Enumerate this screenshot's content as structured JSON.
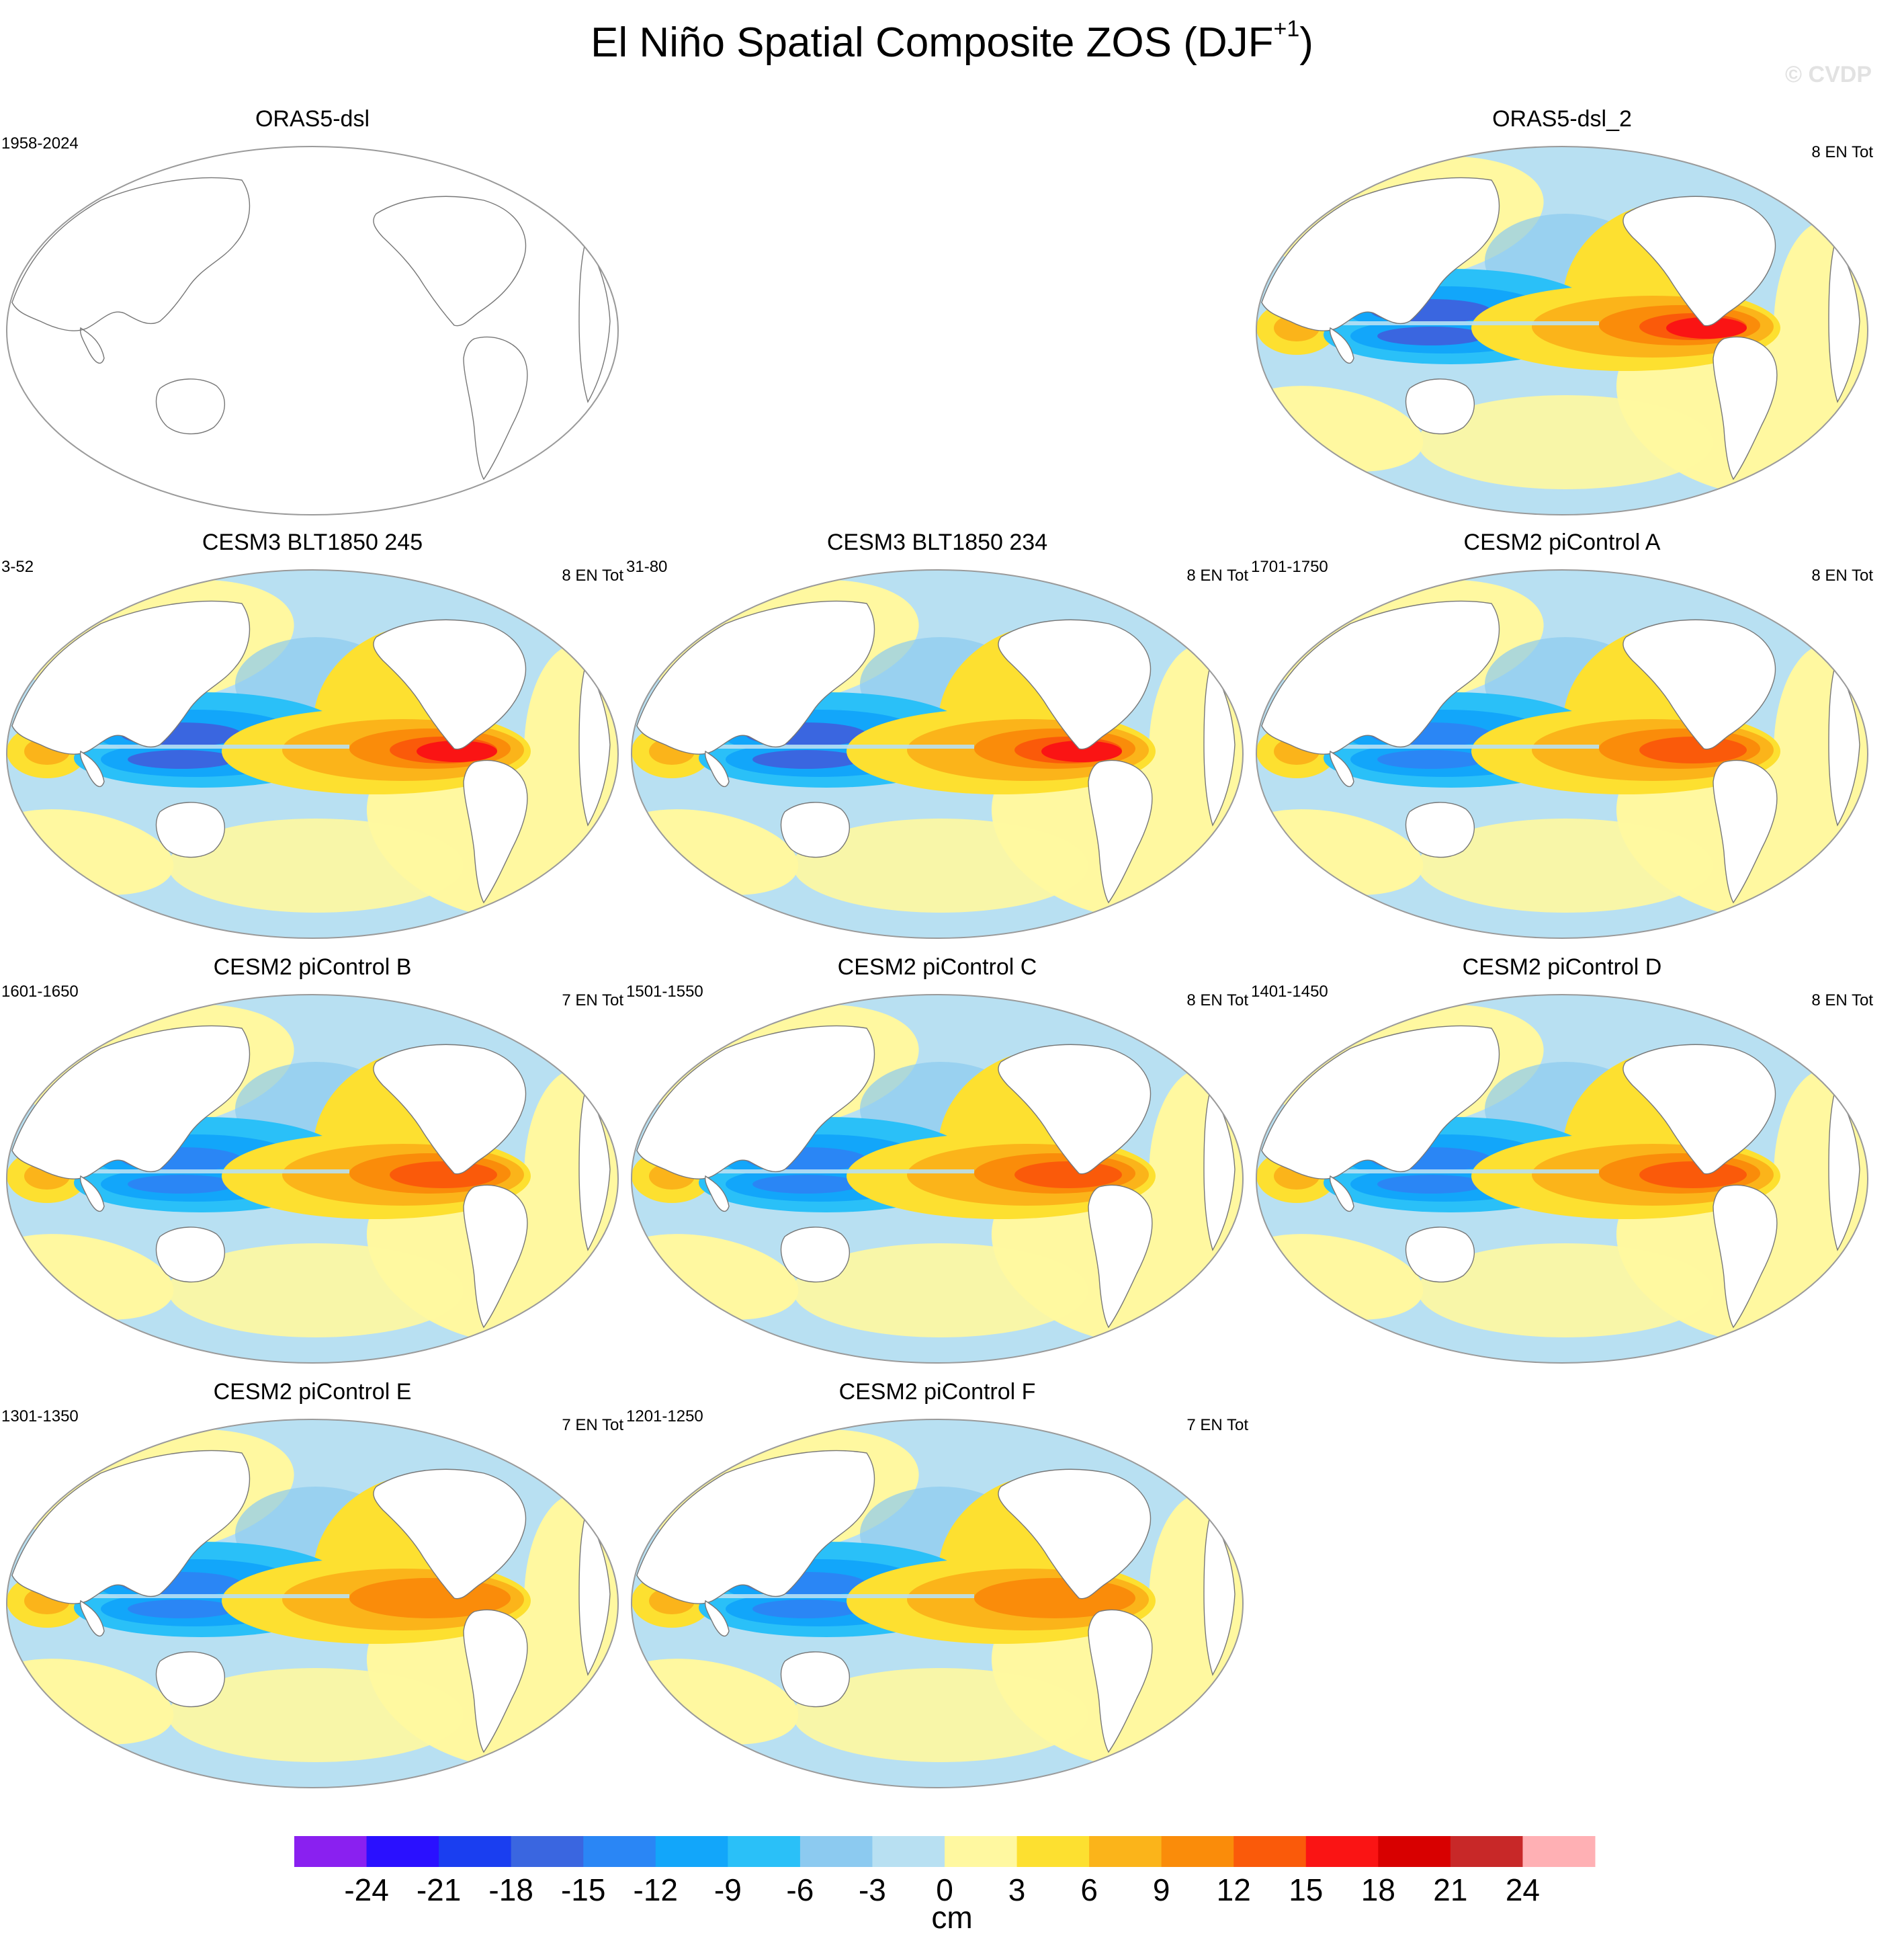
{
  "title_main": "El Niño Spatial Composite ZOS (DJF",
  "title_sup": "+1",
  "title_close": ")",
  "credit": "© CVDP",
  "panels": [
    {
      "title": "ORAS5-dsl",
      "years": "1958-2024",
      "count": "",
      "fill": "none"
    },
    {
      "title": "ORAS5-dsl_2",
      "years": "",
      "count": "8 EN Tot",
      "fill": "obs"
    },
    {
      "title": "CESM3 BLT1850 245",
      "years": "3-52",
      "count": "8 EN Tot",
      "fill": "strong"
    },
    {
      "title": "CESM3 BLT1850 234",
      "years": "31-80",
      "count": "8 EN Tot",
      "fill": "strong"
    },
    {
      "title": "CESM2 piControl A",
      "years": "1701-1750",
      "count": "8 EN Tot",
      "fill": "moderate"
    },
    {
      "title": "CESM2 piControl B",
      "years": "1601-1650",
      "count": "7 EN Tot",
      "fill": "moderate"
    },
    {
      "title": "CESM2 piControl C",
      "years": "1501-1550",
      "count": "8 EN Tot",
      "fill": "moderate"
    },
    {
      "title": "CESM2 piControl D",
      "years": "1401-1450",
      "count": "8 EN Tot",
      "fill": "moderate"
    },
    {
      "title": "CESM2 piControl E",
      "years": "1301-1350",
      "count": "7 EN Tot",
      "fill": "weak"
    },
    {
      "title": "CESM2 piControl F",
      "years": "1201-1250",
      "count": "7 EN Tot",
      "fill": "weak"
    }
  ],
  "colorbar": {
    "unit": "cm",
    "colors": [
      "#8a20f0",
      "#2a10ff",
      "#1a3ef0",
      "#3a66e0",
      "#2a86f5",
      "#12a6fa",
      "#2ac0f8",
      "#8ccaf0",
      "#b8e0f2",
      "#fff8a0",
      "#fde030",
      "#fbb41a",
      "#fa8c0a",
      "#fa5a0a",
      "#fa1414",
      "#d80000",
      "#c82828",
      "#ffb0b4"
    ],
    "ticks": [
      "-24",
      "-21",
      "-18",
      "-15",
      "-12",
      "-9",
      "-6",
      "-3",
      "0",
      "3",
      "6",
      "9",
      "12",
      "15",
      "18",
      "21",
      "24"
    ]
  }
}
